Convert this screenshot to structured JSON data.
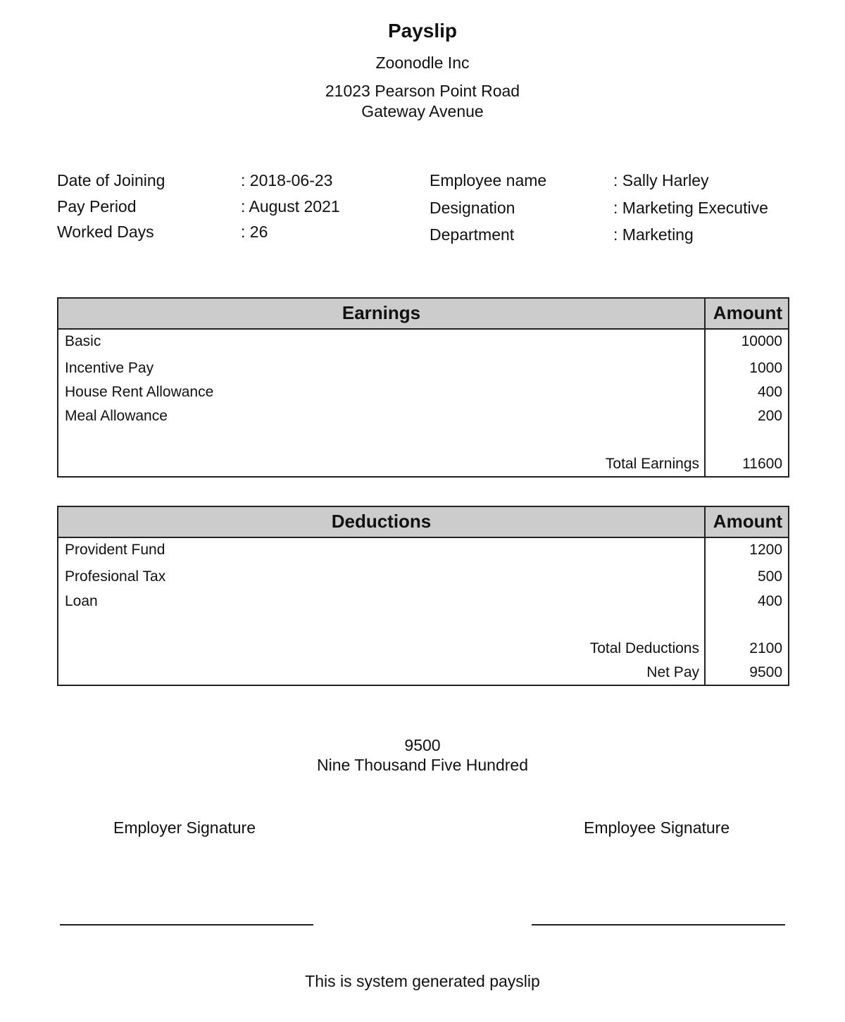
{
  "title": "Payslip",
  "company": "Zoonodle Inc",
  "address": [
    "21023 Pearson Point Road",
    "Gateway Avenue"
  ],
  "info_left": [
    {
      "label": "Date of Joining",
      "value": ": 2018-06-23"
    },
    {
      "label": "Pay Period",
      "value": ": August 2021"
    },
    {
      "label": "Worked Days",
      "value": ": 26"
    }
  ],
  "info_right": [
    {
      "label": "Employee name",
      "value": ": Sally Harley"
    },
    {
      "label": "Designation",
      "value": ": Marketing Executive"
    },
    {
      "label": "Department",
      "value": ": Marketing"
    }
  ],
  "earnings": {
    "header": "Earnings",
    "amount_header": "Amount",
    "rows": [
      {
        "label": "Basic",
        "amount": "10000"
      },
      {
        "label": "Incentive Pay",
        "amount": "1000"
      },
      {
        "label": "House Rent Allowance",
        "amount": "400"
      },
      {
        "label": "Meal Allowance",
        "amount": "200"
      }
    ],
    "total_label": "Total Earnings",
    "total": "11600"
  },
  "deductions": {
    "header": "Deductions",
    "amount_header": "Amount",
    "rows": [
      {
        "label": "Provident Fund",
        "amount": "1200"
      },
      {
        "label": "Profesional Tax",
        "amount": "500"
      },
      {
        "label": "Loan",
        "amount": "400"
      }
    ],
    "total_label": "Total Deductions",
    "total": "2100",
    "net_label": "Net Pay",
    "net": "9500"
  },
  "net_amount": "9500",
  "net_words": "Nine Thousand Five Hundred",
  "employer_signature": "Employer Signature",
  "employee_signature": "Employee Signature",
  "footer": "This is system generated payslip"
}
